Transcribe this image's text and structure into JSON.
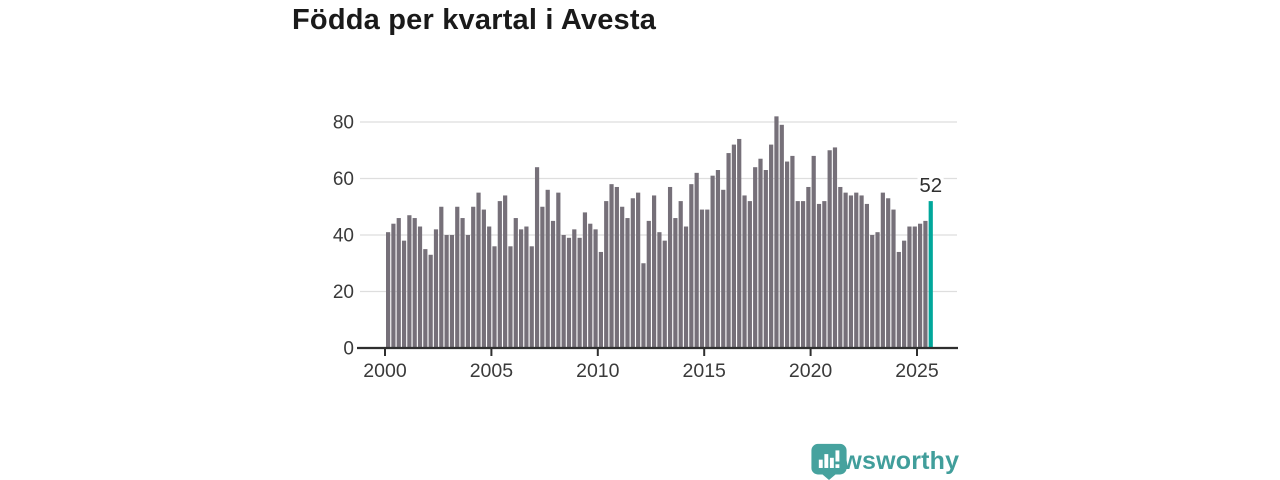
{
  "title": "Födda per kvartal i Avesta",
  "footer": {
    "brand": "Newsworthy"
  },
  "chart_data": {
    "type": "bar",
    "title": "Födda per kvartal i Avesta",
    "frequency": "quarterly",
    "x_start": "2000 Q1",
    "x_end": "2025 Q3",
    "xlabel": "",
    "ylabel": "",
    "yticks": [
      0,
      20,
      40,
      60,
      80
    ],
    "ylim": [
      0,
      88
    ],
    "xticks": [
      2000,
      2005,
      2010,
      2015,
      2020,
      2025
    ],
    "grid": "horizontal",
    "legend_position": "none",
    "colors": {
      "bar": "#767079",
      "highlight": "#00a79b",
      "axis_text": "#3a3a3a",
      "gridline": "#dedede",
      "baseline": "#2f2f2f"
    },
    "highlight": {
      "index": 102,
      "period": "2025 Q3",
      "value": 52,
      "label": "52"
    },
    "values": [
      41,
      44,
      46,
      38,
      47,
      46,
      43,
      35,
      33,
      42,
      50,
      40,
      40,
      50,
      46,
      40,
      50,
      55,
      49,
      43,
      36,
      52,
      54,
      36,
      46,
      42,
      43,
      36,
      64,
      50,
      56,
      45,
      55,
      40,
      39,
      42,
      39,
      48,
      44,
      42,
      34,
      52,
      58,
      57,
      50,
      46,
      53,
      55,
      30,
      45,
      54,
      41,
      38,
      57,
      46,
      52,
      43,
      58,
      62,
      49,
      49,
      61,
      63,
      56,
      69,
      72,
      74,
      54,
      52,
      64,
      67,
      63,
      72,
      82,
      79,
      66,
      68,
      52,
      52,
      57,
      68,
      51,
      52,
      70,
      71,
      57,
      55,
      54,
      55,
      54,
      51,
      40,
      41,
      55,
      53,
      49,
      34,
      38,
      43,
      43,
      44,
      45,
      52
    ]
  }
}
